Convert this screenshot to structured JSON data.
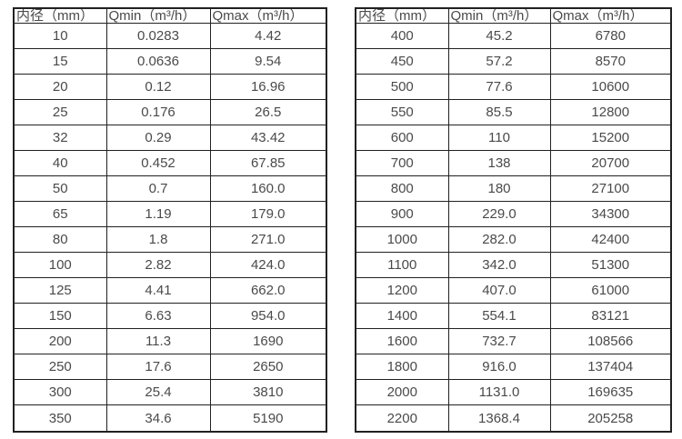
{
  "page": {
    "background": "#ffffff",
    "text_color": "#4a4a4a",
    "border_color": "#212121"
  },
  "tables": [
    {
      "name": "flow-range-table-small-diameters",
      "headers": [
        "内径（mm）",
        "Qmin（m³/h）",
        "Qmax（m³/h）"
      ],
      "rows": [
        [
          "10",
          "0.0283",
          "4.42"
        ],
        [
          "15",
          "0.0636",
          "9.54"
        ],
        [
          "20",
          "0.12",
          "16.96"
        ],
        [
          "25",
          "0.176",
          "26.5"
        ],
        [
          "32",
          "0.29",
          "43.42"
        ],
        [
          "40",
          "0.452",
          "67.85"
        ],
        [
          "50",
          "0.7",
          "160.0"
        ],
        [
          "65",
          "1.19",
          "179.0"
        ],
        [
          "80",
          "1.8",
          "271.0"
        ],
        [
          "100",
          "2.82",
          "424.0"
        ],
        [
          "125",
          "4.41",
          "662.0"
        ],
        [
          "150",
          "6.63",
          "954.0"
        ],
        [
          "200",
          "11.3",
          "1690"
        ],
        [
          "250",
          "17.6",
          "2650"
        ],
        [
          "300",
          "25.4",
          "3810"
        ],
        [
          "350",
          "34.6",
          "5190"
        ]
      ]
    },
    {
      "name": "flow-range-table-large-diameters",
      "headers": [
        "内径（mm）",
        "Qmin（m³/h）",
        "Qmax（m³/h）"
      ],
      "rows": [
        [
          "400",
          "45.2",
          "6780"
        ],
        [
          "450",
          "57.2",
          "8570"
        ],
        [
          "500",
          "77.6",
          "10600"
        ],
        [
          "550",
          "85.5",
          "12800"
        ],
        [
          "600",
          "110",
          "15200"
        ],
        [
          "700",
          "138",
          "20700"
        ],
        [
          "800",
          "180",
          "27100"
        ],
        [
          "900",
          "229.0",
          "34300"
        ],
        [
          "1000",
          "282.0",
          "42400"
        ],
        [
          "1100",
          "342.0",
          "51300"
        ],
        [
          "1200",
          "407.0",
          "61000"
        ],
        [
          "1400",
          "554.1",
          "83121"
        ],
        [
          "1600",
          "732.7",
          "108566"
        ],
        [
          "1800",
          "916.0",
          "137404"
        ],
        [
          "2000",
          "1131.0",
          "169635"
        ],
        [
          "2200",
          "1368.4",
          "205258"
        ]
      ]
    }
  ]
}
